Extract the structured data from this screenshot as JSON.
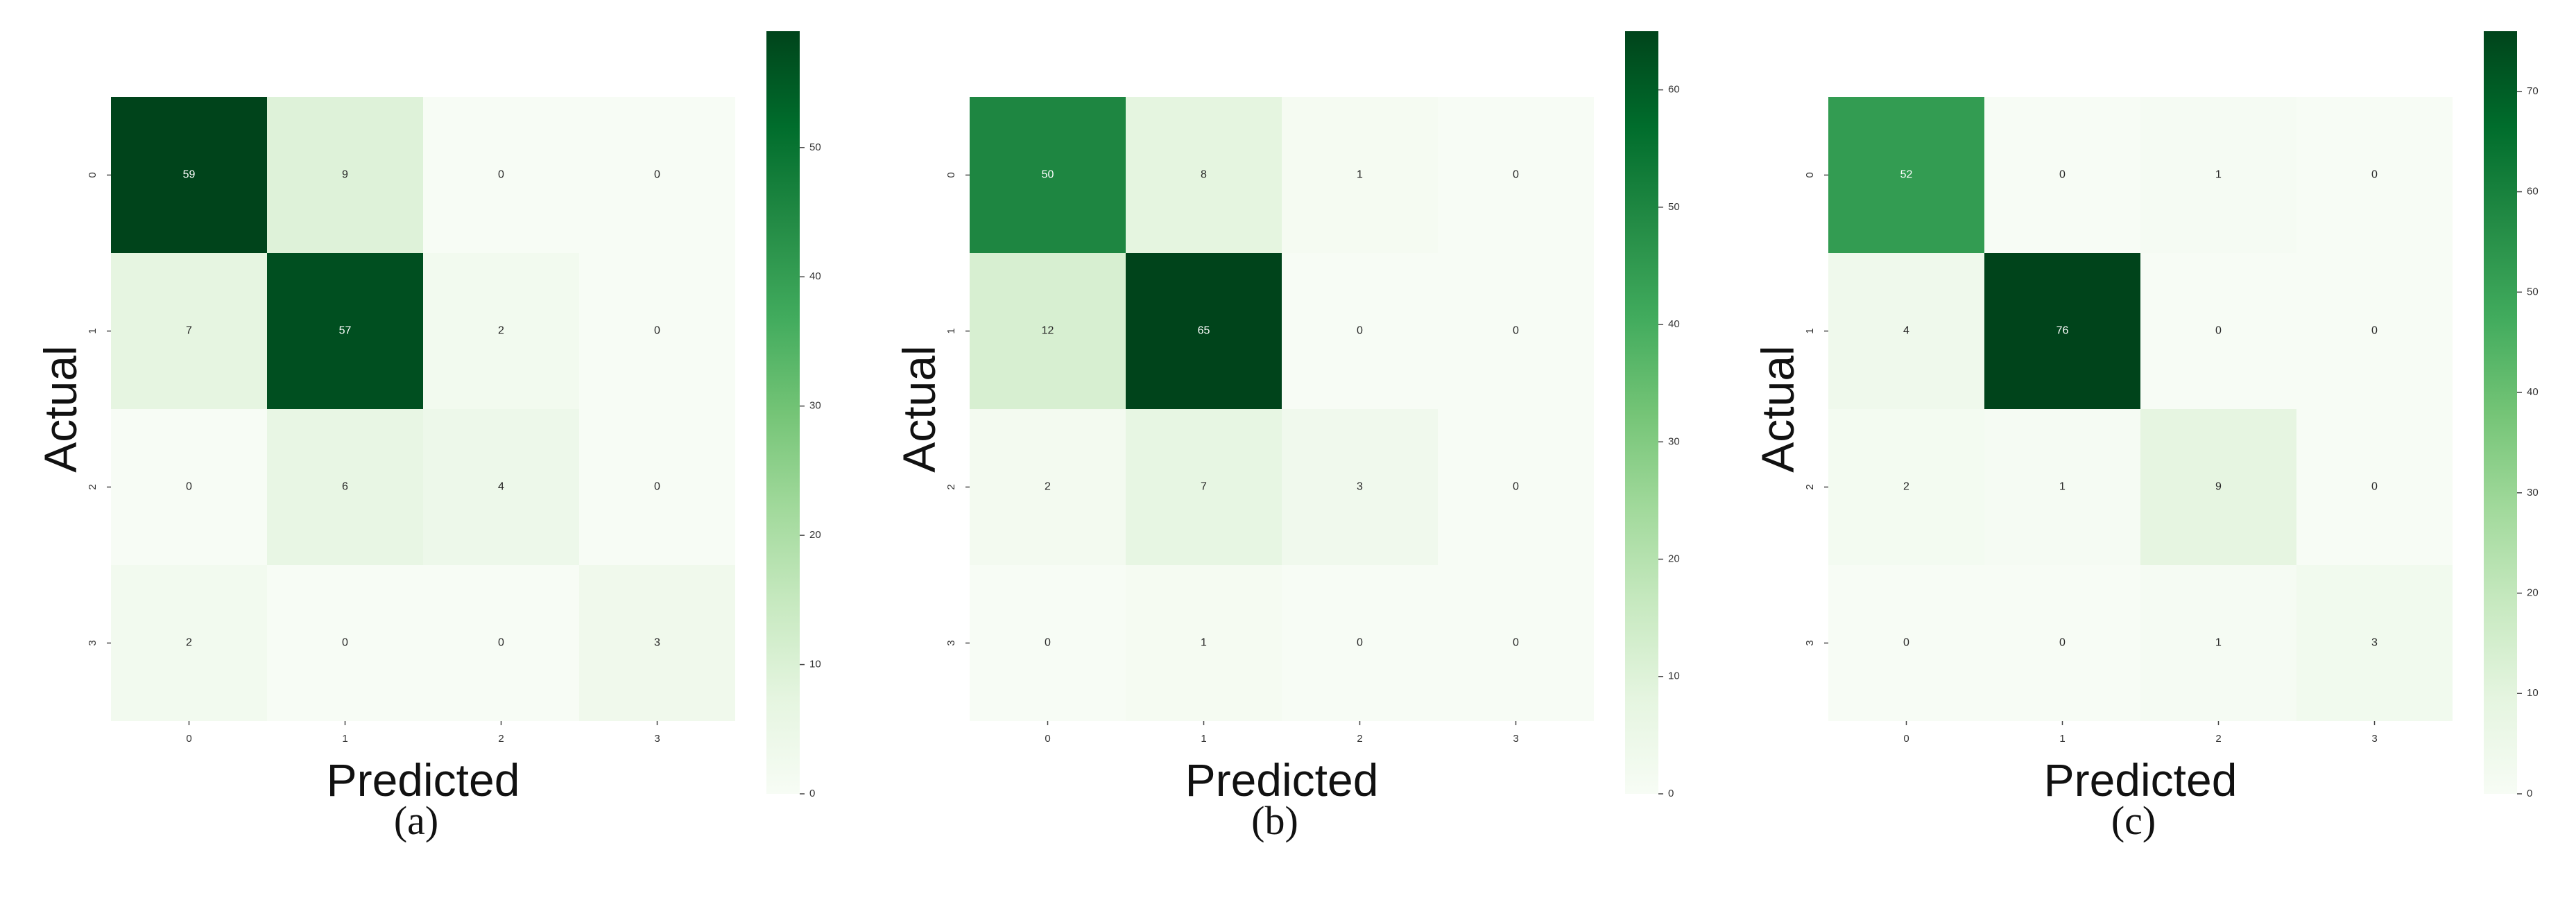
{
  "chart_data": [
    {
      "type": "heatmap",
      "panel_label": "(a)",
      "xlabel": "Predicted",
      "ylabel": "Actual",
      "x_categories": [
        "0",
        "1",
        "2",
        "3"
      ],
      "y_categories": [
        "0",
        "1",
        "2",
        "3"
      ],
      "values": [
        [
          59,
          9,
          0,
          0
        ],
        [
          7,
          57,
          2,
          0
        ],
        [
          0,
          6,
          4,
          0
        ],
        [
          2,
          0,
          0,
          3
        ]
      ],
      "colormap": "Greens",
      "colorbar_ticks": [
        0,
        10,
        20,
        30,
        40,
        50
      ],
      "colorbar_range": [
        0,
        59
      ]
    },
    {
      "type": "heatmap",
      "panel_label": "(b)",
      "xlabel": "Predicted",
      "ylabel": "Actual",
      "x_categories": [
        "0",
        "1",
        "2",
        "3"
      ],
      "y_categories": [
        "0",
        "1",
        "2",
        "3"
      ],
      "values": [
        [
          50,
          8,
          1,
          0
        ],
        [
          12,
          65,
          0,
          0
        ],
        [
          2,
          7,
          3,
          0
        ],
        [
          0,
          1,
          0,
          0
        ]
      ],
      "colormap": "Greens",
      "colorbar_ticks": [
        0,
        10,
        20,
        30,
        40,
        50,
        60
      ],
      "colorbar_range": [
        0,
        65
      ]
    },
    {
      "type": "heatmap",
      "panel_label": "(c)",
      "xlabel": "Predicted",
      "ylabel": "Actual",
      "x_categories": [
        "0",
        "1",
        "2",
        "3"
      ],
      "y_categories": [
        "0",
        "1",
        "2",
        "3"
      ],
      "values": [
        [
          52,
          0,
          1,
          0
        ],
        [
          4,
          76,
          0,
          0
        ],
        [
          2,
          1,
          9,
          0
        ],
        [
          0,
          0,
          1,
          3
        ]
      ],
      "colormap": "Greens",
      "colorbar_ticks": [
        0,
        10,
        20,
        30,
        40,
        50,
        60,
        70
      ],
      "colorbar_range": [
        0,
        76
      ]
    }
  ]
}
